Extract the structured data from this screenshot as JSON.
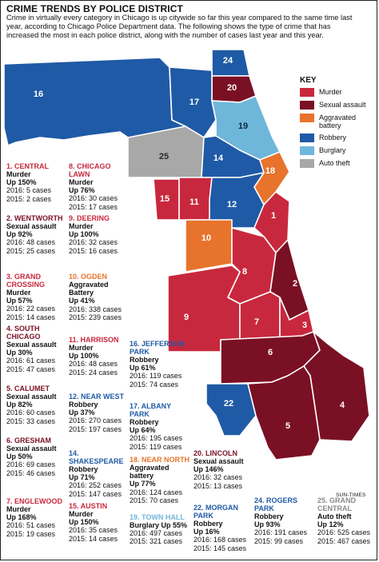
{
  "title": "CRIME TRENDS BY POLICE DISTRICT",
  "intro": "Crime in virtually every category in Chicago is up citywide so far this year compared to the same time last year, according to Chicago Police Department data. The following shows the type of crime that has increased the most in each police district, along with the number of cases last year and this year.",
  "credit": "SUN-TIMES",
  "colors": {
    "murder": "#c8283d",
    "sexual_assault": "#7a1024",
    "aggravated_battery": "#e8732c",
    "robbery": "#1f5aa6",
    "burglary": "#6fb6db",
    "auto_theft": "#a8a8a8"
  },
  "key": {
    "title": "KEY",
    "items": [
      {
        "label": "Murder",
        "color": "#c8283d"
      },
      {
        "label": "Sexual assault",
        "color": "#7a1024"
      },
      {
        "label": "Aggravated battery",
        "color": "#e8732c"
      },
      {
        "label": "Robbery",
        "color": "#1f5aa6"
      },
      {
        "label": "Burglary",
        "color": "#6fb6db"
      },
      {
        "label": "Auto theft",
        "color": "#a8a8a8"
      }
    ]
  },
  "map_labels": [
    "16",
    "24",
    "20",
    "17",
    "19",
    "25",
    "14",
    "18",
    "15",
    "11",
    "12",
    "1",
    "10",
    "8",
    "2",
    "9",
    "7",
    "3",
    "6",
    "22",
    "4",
    "5"
  ],
  "districts": [
    {
      "name": "1. CENTRAL",
      "crime": "Murder",
      "change": "Up 150%",
      "y2016": "2016: 5 cases",
      "y2015": "2015: 2 cases"
    },
    {
      "name": "2. WENTWORTH",
      "crime": "Sexual assault",
      "change": "Up 92%",
      "y2016": "2016: 48 cases",
      "y2015": "2015: 25 cases"
    },
    {
      "name": "3. GRAND CROSSING",
      "crime": "Murder",
      "change": "Up 57%",
      "y2016": "2016: 22 cases",
      "y2015": "2015: 14 cases"
    },
    {
      "name": "4. SOUTH CHICAGO",
      "crime": "Sexual assault",
      "change": "Up 30%",
      "y2016": "2016: 61 cases",
      "y2015": "2015: 47 cases"
    },
    {
      "name": "5. CALUMET",
      "crime": "Sexual assault",
      "change": "Up 82%",
      "y2016": "2016: 60 cases",
      "y2015": "2015: 33 cases"
    },
    {
      "name": "6. GRESHAM",
      "crime": "Sexual assault",
      "change": "Up 50%",
      "y2016": "2016: 69 cases",
      "y2015": "2015: 46 cases"
    },
    {
      "name": "7. ENGLEWOOD",
      "crime": "Murder",
      "change": "Up 168%",
      "y2016": "2016: 51 cases",
      "y2015": "2015: 19 cases"
    },
    {
      "name": "8. CHICAGO LAWN",
      "crime": "Murder",
      "change": "Up 76%",
      "y2016": "2016: 30 cases",
      "y2015": "2015: 17 cases"
    },
    {
      "name": "9. DEERING",
      "crime": "Murder",
      "change": "Up 100%",
      "y2016": "2016: 32 cases",
      "y2015": "2015: 16 cases"
    },
    {
      "name": "10. OGDEN",
      "crime": "Aggravated Battery",
      "change": "Up 41%",
      "y2016": "2016: 338 cases",
      "y2015": "2015: 239 cases"
    },
    {
      "name": "11. HARRISON",
      "crime": "Murder",
      "change": "Up 100%",
      "y2016": "2016: 48 cases",
      "y2015": "2015: 24 cases"
    },
    {
      "name": "12. NEAR WEST",
      "crime": "Robbery",
      "change": "Up 37%",
      "y2016": "2016: 270 cases",
      "y2015": "2015: 197 cases"
    },
    {
      "name": "14. SHAKESPEARE",
      "crime": "Robbery",
      "change": "Up 71%",
      "y2016": "2016: 252 cases",
      "y2015": "2015: 147 cases"
    },
    {
      "name": "15. AUSTIN",
      "crime": "Murder",
      "change": "Up 150%",
      "y2016": "2016: 35 cases",
      "y2015": "2015: 14 cases"
    },
    {
      "name": "16. JEFFERSON PARK",
      "crime": "Robbery",
      "change": "Up 61%",
      "y2016": "2016: 119 cases",
      "y2015": "2015: 74 cases"
    },
    {
      "name": "17. ALBANY PARK",
      "crime": "Robbery",
      "change": "Up 64%",
      "y2016": "2016: 195 cases",
      "y2015": "2015: 119 cases"
    },
    {
      "name": "18. NEAR NORTH",
      "crime": "Aggravated battery",
      "change": "Up 77%",
      "y2016": "2016: 124 cases",
      "y2015": "2015: 70 cases"
    },
    {
      "name": "19. TOWN HALL",
      "crime": "Burglary Up 55%",
      "change": "",
      "y2016": "2016: 497 cases",
      "y2015": "2015: 321 cases"
    },
    {
      "name": "20. LINCOLN",
      "crime": "Sexual assault",
      "change": "Up 146%",
      "y2016": "2016: 32 cases",
      "y2015": "2015: 13 cases"
    },
    {
      "name": "22. MORGAN PARK",
      "crime": "Robbery",
      "change": "Up 16%",
      "y2016": "2016: 168 cases",
      "y2015": "2015: 145 cases"
    },
    {
      "name": "24. ROGERS PARK",
      "crime": "Robbery",
      "change": "Up 93%",
      "y2016": "2016: 191 cases",
      "y2015": "2015: 99 cases"
    },
    {
      "name": "25. GRAND CENTRAL",
      "crime": "Auto theft",
      "change": "Up 12%",
      "y2016": "2016: 525 cases",
      "y2015": "2015: 467 cases"
    }
  ]
}
